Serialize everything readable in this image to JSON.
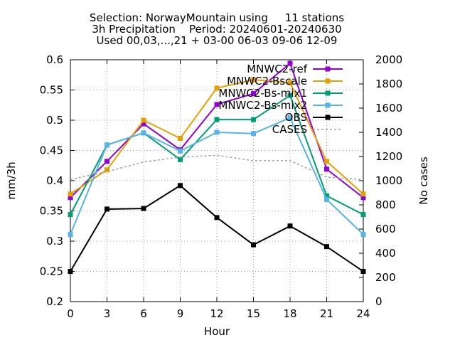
{
  "chart_data": {
    "type": "line",
    "title_lines": [
      "Selection: NorwayMountain using     11 stations",
      "3h Precipitation    Period: 20240601-20240630",
      "Used 00,03,...,21 + 03-00 06-03 09-06 12-09"
    ],
    "xlabel": "Hour",
    "ylabel": "mm/3h",
    "y2label": "No cases",
    "x": [
      0,
      3,
      6,
      9,
      12,
      15,
      18,
      21,
      24
    ],
    "xlim": [
      0,
      24
    ],
    "ylim": [
      0.2,
      0.6
    ],
    "y2lim": [
      0,
      2000
    ],
    "xticks": [
      "0",
      "3",
      "6",
      "9",
      "12",
      "15",
      "18",
      "21",
      "24"
    ],
    "yticks": [
      "0.2",
      "0.25",
      "0.3",
      "0.35",
      "0.4",
      "0.45",
      "0.5",
      "0.55",
      "0.6"
    ],
    "y2ticks": [
      "0",
      "200",
      "400",
      "600",
      "800",
      "1000",
      "1200",
      "1400",
      "1600",
      "1800",
      "2000"
    ],
    "grid": true,
    "legend_position": "top-right",
    "series": [
      {
        "name": "MNWC2-ref",
        "color": "#9400d3",
        "axis": "y",
        "style": "line-points",
        "values": [
          0.372,
          0.432,
          0.494,
          0.451,
          0.526,
          0.544,
          0.594,
          0.419,
          0.372
        ]
      },
      {
        "name": "MNWC2-Bscale",
        "color": "#e69f00",
        "axis": "y",
        "style": "line-points",
        "values": [
          0.378,
          0.418,
          0.5,
          0.47,
          0.553,
          0.567,
          0.562,
          0.432,
          0.378
        ]
      },
      {
        "name": "MNWC2-Bs-mix1",
        "color": "#009e73",
        "axis": "y",
        "style": "line-points",
        "values": [
          0.344,
          0.459,
          0.479,
          0.435,
          0.501,
          0.501,
          0.541,
          0.375,
          0.344
        ]
      },
      {
        "name": "MNWC2-Bs-mix2",
        "color": "#56b4e9",
        "axis": "y",
        "style": "line-points",
        "values": [
          0.311,
          0.459,
          0.479,
          0.449,
          0.48,
          0.478,
          0.504,
          0.369,
          0.311
        ]
      },
      {
        "name": "OBS",
        "color": "#000000",
        "axis": "y",
        "style": "line-points",
        "values": [
          0.25,
          0.353,
          0.354,
          0.392,
          0.339,
          0.294,
          0.325,
          0.291,
          0.25
        ]
      },
      {
        "name": "CASES",
        "color": "#a0a0a0",
        "axis": "y2",
        "style": "dashed",
        "values": [
          1010,
          1075,
          1155,
          1195,
          1210,
          1165,
          1165,
          1030,
          1010
        ]
      }
    ]
  }
}
